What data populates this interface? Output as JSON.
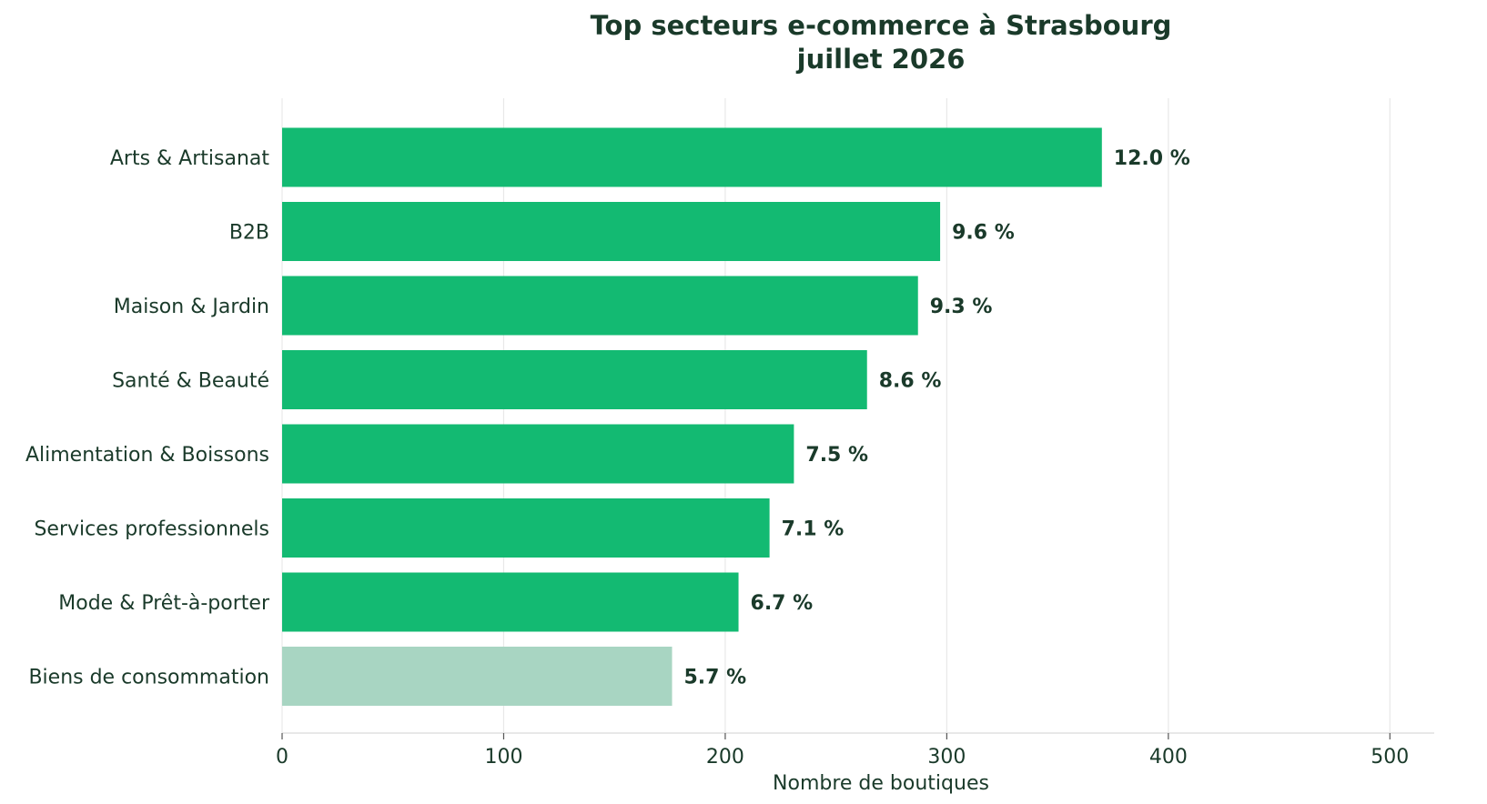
{
  "chart_data": {
    "type": "bar",
    "orientation": "horizontal",
    "title": "Top secteurs e-commerce à Strasbourg",
    "subtitle": "juillet 2026",
    "xlabel": "Nombre de boutiques",
    "ylabel": "",
    "xlim": [
      0,
      520
    ],
    "xticks": [
      0,
      100,
      200,
      300,
      400,
      500
    ],
    "grid": true,
    "legend": "none",
    "categories": [
      "Arts & Artisanat",
      "B2B",
      "Maison & Jardin",
      "Santé & Beauté",
      "Alimentation & Boissons",
      "Services professionnels",
      "Mode & Prêt-à-porter",
      "Biens de consommation"
    ],
    "values": [
      370,
      297,
      287,
      264,
      231,
      220,
      206,
      176
    ],
    "data_labels": [
      "12.0 %",
      "9.6 %",
      "9.3 %",
      "8.6 %",
      "7.5 %",
      "7.1 %",
      "6.7 %",
      "5.7 %"
    ],
    "highlight_index": 7,
    "colors": {
      "bar": "#13ba72",
      "bar_highlight": "#a8d5c2",
      "text": "#1a3a2a",
      "grid": "#e8e8e8",
      "axis": "#e0e0e0"
    }
  }
}
